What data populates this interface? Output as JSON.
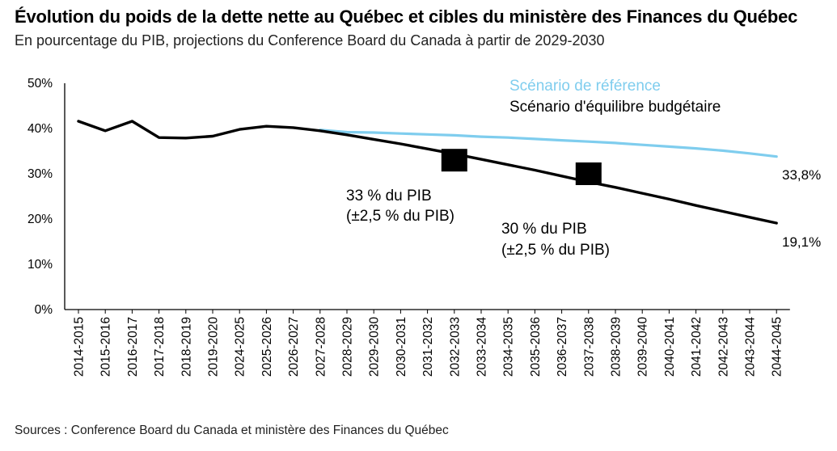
{
  "header": {
    "title": "Évolution du poids de la dette nette au Québec et cibles du ministère des Finances du Québec",
    "subtitle": "En pourcentage du PIB, projections du Conference Board du Canada à partir de 2029-2030"
  },
  "footer": {
    "source": "Sources : Conference Board du Canada et ministère des Finances du Québec"
  },
  "chart_data": {
    "type": "line",
    "categories": [
      "2014-2015",
      "2015-2016",
      "2016-2017",
      "2017-2018",
      "2018-2019",
      "2019-2020",
      "2024-2025",
      "2025-2026",
      "2026-2027",
      "2027-2028",
      "2028-2029",
      "2029-2030",
      "2030-2031",
      "2031-2032",
      "2032-2033",
      "2033-2034",
      "2034-2035",
      "2035-2036",
      "2036-2037",
      "2037-2038",
      "2038-2039",
      "2039-2040",
      "2040-2041",
      "2041-2042",
      "2042-2043",
      "2043-2044",
      "2044-2045"
    ],
    "y_ticks": [
      "0%",
      "10%",
      "20%",
      "30%",
      "40%",
      "50%"
    ],
    "ylim": [
      0,
      50
    ],
    "series": [
      {
        "name": "Scénario de référence",
        "color": "#7fcdee",
        "values": [
          null,
          null,
          null,
          null,
          null,
          null,
          null,
          null,
          null,
          39.7,
          39.2,
          39.1,
          38.9,
          38.7,
          38.5,
          38.2,
          38.0,
          37.7,
          37.4,
          37.1,
          36.8,
          36.4,
          36.0,
          35.6,
          35.1,
          34.5,
          33.8
        ]
      },
      {
        "name": "Scénario d'équilibre budgétaire",
        "color": "#000000",
        "values": [
          41.6,
          39.5,
          41.6,
          38.0,
          37.9,
          38.3,
          39.8,
          40.5,
          40.2,
          39.5,
          38.6,
          37.6,
          36.6,
          35.5,
          34.4,
          33.2,
          32.0,
          30.8,
          29.5,
          28.2,
          27.0,
          25.7,
          24.4,
          23.0,
          21.7,
          20.4,
          19.1
        ]
      }
    ],
    "end_labels": {
      "reference": "33,8%",
      "balanced": "19,1%"
    },
    "targets": [
      {
        "category": "2032-2033",
        "value": 33,
        "band": 2.5,
        "label_line1": "33 % du PIB",
        "label_line2": "(±2,5 % du PIB)"
      },
      {
        "category": "2037-2038",
        "value": 30,
        "band": 2.5,
        "label_line1": "30 % du PIB",
        "label_line2": "(±2,5 % du PIB)"
      }
    ],
    "legend_position": "top-right",
    "grid": false
  }
}
